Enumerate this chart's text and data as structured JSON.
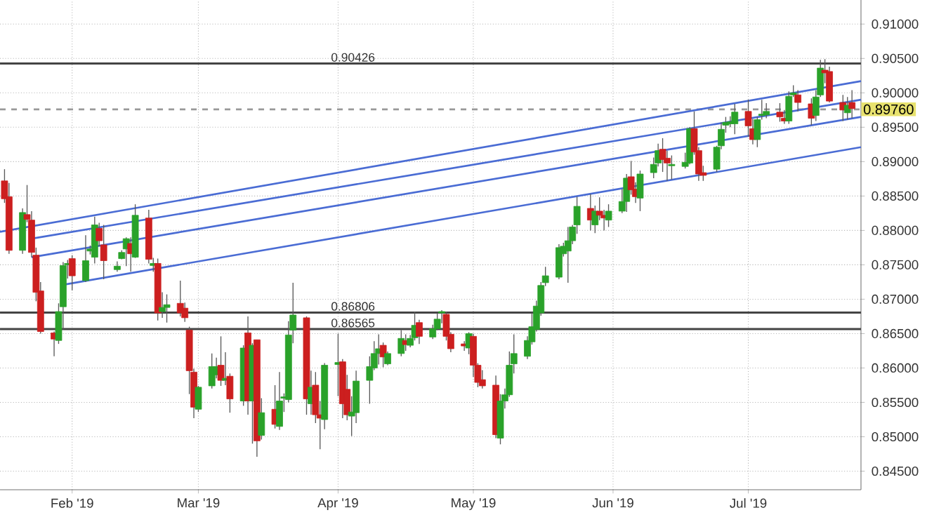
{
  "chart_data": {
    "type": "candlestick",
    "x": [
      "2019-01-17",
      "2019-01-18",
      "2019-01-21",
      "2019-01-22",
      "2019-01-23",
      "2019-01-24",
      "2019-01-25",
      "2019-01-28",
      "2019-01-29",
      "2019-01-30",
      "2019-01-31",
      "2019-02-01",
      "2019-02-04",
      "2019-02-05",
      "2019-02-06",
      "2019-02-07",
      "2019-02-08",
      "2019-02-11",
      "2019-02-12",
      "2019-02-13",
      "2019-02-14",
      "2019-02-15",
      "2019-02-18",
      "2019-02-19",
      "2019-02-20",
      "2019-02-21",
      "2019-02-22",
      "2019-02-25",
      "2019-02-26",
      "2019-02-27",
      "2019-02-28",
      "2019-03-01",
      "2019-03-04",
      "2019-03-05",
      "2019-03-06",
      "2019-03-07",
      "2019-03-08",
      "2019-03-11",
      "2019-03-12",
      "2019-03-13",
      "2019-03-14",
      "2019-03-15",
      "2019-03-18",
      "2019-03-19",
      "2019-03-20",
      "2019-03-21",
      "2019-03-22",
      "2019-03-25",
      "2019-03-26",
      "2019-03-27",
      "2019-03-28",
      "2019-03-29",
      "2019-04-01",
      "2019-04-02",
      "2019-04-03",
      "2019-04-04",
      "2019-04-05",
      "2019-04-08",
      "2019-04-09",
      "2019-04-10",
      "2019-04-11",
      "2019-04-12",
      "2019-04-15",
      "2019-04-16",
      "2019-04-17",
      "2019-04-18",
      "2019-04-19",
      "2019-04-22",
      "2019-04-23",
      "2019-04-24",
      "2019-04-25",
      "2019-04-26",
      "2019-04-29",
      "2019-04-30",
      "2019-05-01",
      "2019-05-02",
      "2019-05-03",
      "2019-05-06",
      "2019-05-07",
      "2019-05-08",
      "2019-05-09",
      "2019-05-10",
      "2019-05-13",
      "2019-05-14",
      "2019-05-15",
      "2019-05-16",
      "2019-05-17",
      "2019-05-20",
      "2019-05-21",
      "2019-05-22",
      "2019-05-23",
      "2019-05-24",
      "2019-05-27",
      "2019-05-28",
      "2019-05-29",
      "2019-05-30",
      "2019-05-31",
      "2019-06-03",
      "2019-06-04",
      "2019-06-05",
      "2019-06-06",
      "2019-06-07",
      "2019-06-10",
      "2019-06-11",
      "2019-06-12",
      "2019-06-13",
      "2019-06-14",
      "2019-06-17",
      "2019-06-18",
      "2019-06-19",
      "2019-06-20",
      "2019-06-21",
      "2019-06-24",
      "2019-06-25",
      "2019-06-26",
      "2019-06-27",
      "2019-06-28",
      "2019-07-01",
      "2019-07-02",
      "2019-07-03",
      "2019-07-04",
      "2019-07-05",
      "2019-07-08",
      "2019-07-09",
      "2019-07-10",
      "2019-07-11",
      "2019-07-12",
      "2019-07-15",
      "2019-07-16",
      "2019-07-17",
      "2019-07-18",
      "2019-07-19",
      "2019-07-22",
      "2019-07-23",
      "2019-07-24"
    ],
    "ohlc": [
      [
        0.8872,
        0.8889,
        0.884,
        0.8846
      ],
      [
        0.8849,
        0.8869,
        0.8766,
        0.8771
      ],
      [
        0.8771,
        0.8832,
        0.8766,
        0.8826
      ],
      [
        0.8823,
        0.8866,
        0.8812,
        0.8816
      ],
      [
        0.8815,
        0.8828,
        0.8761,
        0.8768
      ],
      [
        0.8764,
        0.8775,
        0.8697,
        0.871
      ],
      [
        0.8712,
        0.8725,
        0.865,
        0.8653
      ],
      [
        0.8651,
        0.8653,
        0.8617,
        0.8642
      ],
      [
        0.864,
        0.8694,
        0.8635,
        0.8682
      ],
      [
        0.8689,
        0.8754,
        0.8656,
        0.8749
      ],
      [
        0.875,
        0.8757,
        0.873,
        0.8752
      ],
      [
        0.8759,
        0.8764,
        0.8713,
        0.8734
      ],
      [
        0.8727,
        0.8793,
        0.8725,
        0.8756
      ],
      [
        0.877,
        0.8778,
        0.8765,
        0.8773
      ],
      [
        0.8761,
        0.882,
        0.8752,
        0.8808
      ],
      [
        0.8803,
        0.8811,
        0.8777,
        0.8785
      ],
      [
        0.8779,
        0.8808,
        0.8729,
        0.8756
      ],
      [
        0.8743,
        0.8755,
        0.874,
        0.8748
      ],
      [
        0.8759,
        0.8771,
        0.8758,
        0.8768
      ],
      [
        0.8773,
        0.879,
        0.8748,
        0.8788
      ],
      [
        0.8781,
        0.879,
        0.874,
        0.8766
      ],
      [
        0.8761,
        0.8838,
        0.876,
        0.8822
      ],
      [
        0.8818,
        0.883,
        0.8752,
        0.8758
      ],
      [
        0.8749,
        0.876,
        0.874,
        0.8752
      ],
      [
        0.8752,
        0.8759,
        0.8669,
        0.868
      ],
      [
        0.8682,
        0.871,
        0.8673,
        0.8688
      ],
      [
        0.8688,
        0.8707,
        0.8666,
        0.8692
      ],
      [
        0.8694,
        0.8727,
        0.8675,
        0.868
      ],
      [
        0.8687,
        0.8695,
        0.8667,
        0.8673
      ],
      [
        0.8655,
        0.866,
        0.8562,
        0.8596
      ],
      [
        0.8594,
        0.8599,
        0.8527,
        0.8543
      ],
      [
        0.854,
        0.8574,
        0.8536,
        0.8572
      ],
      [
        0.8574,
        0.8621,
        0.857,
        0.8602
      ],
      [
        0.859,
        0.8615,
        0.8585,
        0.8602
      ],
      [
        0.8604,
        0.8646,
        0.8574,
        0.8582
      ],
      [
        0.8582,
        0.8623,
        0.8575,
        0.8585
      ],
      [
        0.8588,
        0.8592,
        0.8535,
        0.8555
      ],
      [
        0.8552,
        0.8633,
        0.8545,
        0.8629
      ],
      [
        0.8651,
        0.8675,
        0.8532,
        0.8552
      ],
      [
        0.8552,
        0.8636,
        0.849,
        0.8633
      ],
      [
        0.8641,
        0.8641,
        0.8471,
        0.8494
      ],
      [
        0.8502,
        0.8556,
        0.8496,
        0.8535
      ],
      [
        0.854,
        0.8575,
        0.8512,
        0.8518
      ],
      [
        0.8515,
        0.8594,
        0.851,
        0.8552
      ],
      [
        0.8556,
        0.8563,
        0.8536,
        0.8558
      ],
      [
        0.8554,
        0.8668,
        0.855,
        0.8648
      ],
      [
        0.8655,
        0.8724,
        0.8636,
        0.8677
      ],
      [
        0.8673,
        0.8675,
        0.8532,
        0.8555
      ],
      [
        0.8548,
        0.8596,
        0.8532,
        0.8572
      ],
      [
        0.8575,
        0.8594,
        0.852,
        0.8532
      ],
      [
        0.8532,
        0.8552,
        0.8482,
        0.8527
      ],
      [
        0.8525,
        0.8607,
        0.8511,
        0.8604
      ],
      [
        0.8605,
        0.865,
        0.8559,
        0.8608
      ],
      [
        0.8609,
        0.8613,
        0.8527,
        0.8548
      ],
      [
        0.8569,
        0.859,
        0.8524,
        0.8532
      ],
      [
        0.853,
        0.8559,
        0.8501,
        0.8536
      ],
      [
        0.8535,
        0.8596,
        0.852,
        0.8581
      ],
      [
        0.8582,
        0.8617,
        0.8548,
        0.8602
      ],
      [
        0.86,
        0.8639,
        0.8597,
        0.8621
      ],
      [
        0.8621,
        0.8649,
        0.8605,
        0.8628
      ],
      [
        0.8633,
        0.8637,
        0.8601,
        0.8616
      ],
      [
        0.8606,
        0.8624,
        0.8604,
        0.8621
      ],
      [
        0.8621,
        0.8655,
        0.8617,
        0.8643
      ],
      [
        0.864,
        0.8649,
        0.8625,
        0.8634
      ],
      [
        0.8633,
        0.8648,
        0.863,
        0.8643
      ],
      [
        0.8644,
        0.8682,
        0.864,
        0.8662
      ],
      [
        0.8666,
        0.867,
        0.8635,
        0.8646
      ],
      [
        0.8645,
        0.8663,
        0.8642,
        0.8657
      ],
      [
        0.8657,
        0.868,
        0.8655,
        0.8671
      ],
      [
        0.868,
        0.8684,
        0.8665,
        0.8682
      ],
      [
        0.8678,
        0.8682,
        0.864,
        0.8646
      ],
      [
        0.8649,
        0.8652,
        0.8623,
        0.8628
      ],
      [
        0.8635,
        0.8639,
        0.8625,
        0.8632
      ],
      [
        0.8629,
        0.8652,
        0.862,
        0.865
      ],
      [
        0.8646,
        0.865,
        0.8587,
        0.8604
      ],
      [
        0.8604,
        0.8607,
        0.8572,
        0.8579
      ],
      [
        0.8583,
        0.8597,
        0.857,
        0.8574
      ],
      [
        0.8575,
        0.8589,
        0.8498,
        0.8503
      ],
      [
        0.8498,
        0.8562,
        0.8489,
        0.8552
      ],
      [
        0.8552,
        0.857,
        0.8541,
        0.8561
      ],
      [
        0.8561,
        0.8624,
        0.8558,
        0.8604
      ],
      [
        0.8606,
        0.8649,
        0.8592,
        0.8621
      ],
      [
        0.8617,
        0.8646,
        0.8613,
        0.864
      ],
      [
        0.8638,
        0.868,
        0.8634,
        0.866
      ],
      [
        0.8656,
        0.8698,
        0.8653,
        0.869
      ],
      [
        0.868,
        0.8725,
        0.8676,
        0.872
      ],
      [
        0.8724,
        0.8747,
        0.8719,
        0.8734
      ],
      [
        0.8732,
        0.878,
        0.8729,
        0.8775
      ],
      [
        0.8766,
        0.8782,
        0.8762,
        0.8777
      ],
      [
        0.877,
        0.8805,
        0.8724,
        0.8785
      ],
      [
        0.8785,
        0.8808,
        0.878,
        0.8805
      ],
      [
        0.8808,
        0.8849,
        0.8795,
        0.8835
      ],
      [
        0.8832,
        0.8853,
        0.88,
        0.8815
      ],
      [
        0.8808,
        0.8836,
        0.8796,
        0.8828
      ],
      [
        0.8828,
        0.8848,
        0.8815,
        0.8822
      ],
      [
        0.8822,
        0.883,
        0.88,
        0.8818
      ],
      [
        0.8815,
        0.8838,
        0.8805,
        0.8828
      ],
      [
        0.8828,
        0.886,
        0.8825,
        0.8842
      ],
      [
        0.8842,
        0.8882,
        0.8827,
        0.8876
      ],
      [
        0.8878,
        0.8901,
        0.8852,
        0.8859
      ],
      [
        0.886,
        0.887,
        0.884,
        0.8849
      ],
      [
        0.8847,
        0.8887,
        0.8828,
        0.8882
      ],
      [
        0.8884,
        0.8906,
        0.8876,
        0.8896
      ],
      [
        0.8898,
        0.8926,
        0.8893,
        0.8916
      ],
      [
        0.8918,
        0.8934,
        0.8885,
        0.8903
      ],
      [
        0.8905,
        0.8916,
        0.8872,
        0.8898
      ],
      [
        0.8894,
        0.8909,
        0.8874,
        0.8896
      ],
      [
        0.8893,
        0.8913,
        0.889,
        0.8899
      ],
      [
        0.8898,
        0.895,
        0.8896,
        0.8948
      ],
      [
        0.8948,
        0.8973,
        0.891,
        0.8914
      ],
      [
        0.8916,
        0.8921,
        0.8872,
        0.8882
      ],
      [
        0.8884,
        0.8894,
        0.8872,
        0.888
      ],
      [
        0.8889,
        0.8923,
        0.8885,
        0.8921
      ],
      [
        0.8923,
        0.8957,
        0.8918,
        0.8947
      ],
      [
        0.8953,
        0.8965,
        0.8942,
        0.8957
      ],
      [
        0.8955,
        0.8966,
        0.895,
        0.8958
      ],
      [
        0.8955,
        0.8984,
        0.894,
        0.8972
      ],
      [
        0.8973,
        0.899,
        0.8936,
        0.8952
      ],
      [
        0.8948,
        0.8962,
        0.8925,
        0.8932
      ],
      [
        0.8932,
        0.8965,
        0.8921,
        0.8961
      ],
      [
        0.8967,
        0.899,
        0.8961,
        0.8969
      ],
      [
        0.8968,
        0.8985,
        0.8963,
        0.8973
      ],
      [
        0.8972,
        0.8985,
        0.8958,
        0.8965
      ],
      [
        0.8963,
        0.8975,
        0.8955,
        0.8959
      ],
      [
        0.8959,
        0.9002,
        0.8955,
        0.8995
      ],
      [
        0.8997,
        0.9011,
        0.8994,
        0.9
      ],
      [
        0.8997,
        0.9004,
        0.8973,
        0.8986
      ],
      [
        0.8984,
        0.8992,
        0.8953,
        0.8963
      ],
      [
        0.8967,
        0.9004,
        0.8959,
        0.8994
      ],
      [
        0.8997,
        0.9048,
        0.8994,
        0.9036
      ],
      [
        0.9033,
        0.9049,
        0.9014,
        0.9029
      ],
      [
        0.9031,
        0.9038,
        0.8986,
        0.8988
      ],
      [
        0.8986,
        0.8997,
        0.8959,
        0.8975
      ],
      [
        0.8971,
        0.8994,
        0.8961,
        0.8982
      ],
      [
        0.8986,
        0.9004,
        0.8963,
        0.8977
      ]
    ],
    "colors": [
      "#cc1f1f",
      "#cc1f1f",
      "#2aa22a",
      "#cc1f1f",
      "#cc1f1f",
      "#cc1f1f",
      "#cc1f1f",
      "#cc1f1f",
      "#2aa22a",
      "#2aa22a",
      "#2aa22a",
      "#cc1f1f",
      "#2aa22a",
      "#2aa22a",
      "#2aa22a",
      "#cc1f1f",
      "#cc1f1f",
      "#2aa22a",
      "#2aa22a",
      "#2aa22a",
      "#cc1f1f",
      "#2aa22a",
      "#cc1f1f",
      "#2aa22a",
      "#cc1f1f",
      "#2aa22a",
      "#2aa22a",
      "#cc1f1f",
      "#cc1f1f",
      "#cc1f1f",
      "#cc1f1f",
      "#2aa22a",
      "#2aa22a",
      "#2aa22a",
      "#cc1f1f",
      "#2aa22a",
      "#cc1f1f",
      "#2aa22a",
      "#cc1f1f",
      "#2aa22a",
      "#cc1f1f",
      "#2aa22a",
      "#cc1f1f",
      "#2aa22a",
      "#2aa22a",
      "#2aa22a",
      "#2aa22a",
      "#cc1f1f",
      "#2aa22a",
      "#cc1f1f",
      "#cc1f1f",
      "#2aa22a",
      "#2aa22a",
      "#cc1f1f",
      "#cc1f1f",
      "#2aa22a",
      "#2aa22a",
      "#2aa22a",
      "#2aa22a",
      "#2aa22a",
      "#cc1f1f",
      "#2aa22a",
      "#2aa22a",
      "#cc1f1f",
      "#2aa22a",
      "#2aa22a",
      "#cc1f1f",
      "#2aa22a",
      "#2aa22a",
      "#2aa22a",
      "#cc1f1f",
      "#cc1f1f",
      "#cc1f1f",
      "#2aa22a",
      "#cc1f1f",
      "#cc1f1f",
      "#cc1f1f",
      "#cc1f1f",
      "#2aa22a",
      "#2aa22a",
      "#2aa22a",
      "#2aa22a",
      "#2aa22a",
      "#2aa22a",
      "#2aa22a",
      "#2aa22a",
      "#2aa22a",
      "#2aa22a",
      "#2aa22a",
      "#2aa22a",
      "#2aa22a",
      "#2aa22a",
      "#cc1f1f",
      "#2aa22a",
      "#cc1f1f",
      "#cc1f1f",
      "#2aa22a",
      "#2aa22a",
      "#2aa22a",
      "#cc1f1f",
      "#cc1f1f",
      "#2aa22a",
      "#2aa22a",
      "#2aa22a",
      "#cc1f1f",
      "#cc1f1f",
      "#2aa22a",
      "#2aa22a",
      "#2aa22a",
      "#cc1f1f",
      "#cc1f1f",
      "#cc1f1f",
      "#2aa22a",
      "#2aa22a",
      "#2aa22a",
      "#2aa22a",
      "#2aa22a",
      "#cc1f1f",
      "#cc1f1f",
      "#2aa22a",
      "#2aa22a",
      "#2aa22a",
      "#cc1f1f",
      "#cc1f1f",
      "#2aa22a",
      "#2aa22a",
      "#cc1f1f",
      "#cc1f1f",
      "#2aa22a",
      "#2aa22a",
      "#cc1f1f",
      "#cc1f1f",
      "#cc1f1f",
      "#2aa22a",
      "#cc1f1f"
    ],
    "series": [
      {
        "type": "line",
        "color": "#4a6cd4",
        "x": [
          "2019-01-16",
          "2019-07-26"
        ],
        "values": [
          0.8798,
          0.9017
        ]
      },
      {
        "type": "line",
        "color": "#4a6cd4",
        "x": [
          "2019-01-23",
          "2019-07-26"
        ],
        "values": [
          0.8788,
          0.899
        ]
      },
      {
        "type": "line",
        "color": "#4a6cd4",
        "x": [
          "2019-01-23",
          "2019-07-26"
        ],
        "values": [
          0.8761,
          0.8965
        ]
      },
      {
        "type": "line",
        "color": "#4a6cd4",
        "x": [
          "2019-01-30",
          "2019-07-26"
        ],
        "values": [
          0.8721,
          0.8921
        ]
      }
    ],
    "ref_lines": [
      {
        "axis": "y",
        "value": 0.90426,
        "label": "0.90426",
        "color": "#444444"
      },
      {
        "axis": "y",
        "value": 0.86806,
        "label": "0.86806",
        "color": "#444444"
      },
      {
        "axis": "y",
        "value": 0.86565,
        "label": "0.86565",
        "color": "#444444"
      },
      {
        "axis": "y",
        "value": 0.8976,
        "label": "0.89760",
        "color": "#999999",
        "line_style": "dashed"
      }
    ],
    "xlim": [
      "2019-01-16",
      "2019-07-26"
    ],
    "ylim": [
      0.8423,
      0.9135
    ],
    "xticks": [
      {
        "value": "2019-02-01",
        "label": "Feb '19"
      },
      {
        "value": "2019-03-01",
        "label": "Mar '19"
      },
      {
        "value": "2019-04-01",
        "label": "Apr '19"
      },
      {
        "value": "2019-05-01",
        "label": "May '19"
      },
      {
        "value": "2019-06-01",
        "label": "Jun '19"
      },
      {
        "value": "2019-07-01",
        "label": "Jul '19"
      }
    ],
    "yticks": [
      {
        "value": 0.845,
        "label": "0.84500"
      },
      {
        "value": 0.85,
        "label": "0.85000"
      },
      {
        "value": 0.855,
        "label": "0.85500"
      },
      {
        "value": 0.86,
        "label": "0.86000"
      },
      {
        "value": 0.865,
        "label": "0.86500"
      },
      {
        "value": 0.87,
        "label": "0.87000"
      },
      {
        "value": 0.875,
        "label": "0.87500"
      },
      {
        "value": 0.88,
        "label": "0.88000"
      },
      {
        "value": 0.885,
        "label": "0.88500"
      },
      {
        "value": 0.89,
        "label": "0.89000"
      },
      {
        "value": 0.895,
        "label": "0.89500"
      },
      {
        "value": 0.9,
        "label": "0.90000"
      },
      {
        "value": 0.905,
        "label": "0.90500"
      },
      {
        "value": 0.91,
        "label": "0.91000"
      }
    ],
    "grid": true
  }
}
